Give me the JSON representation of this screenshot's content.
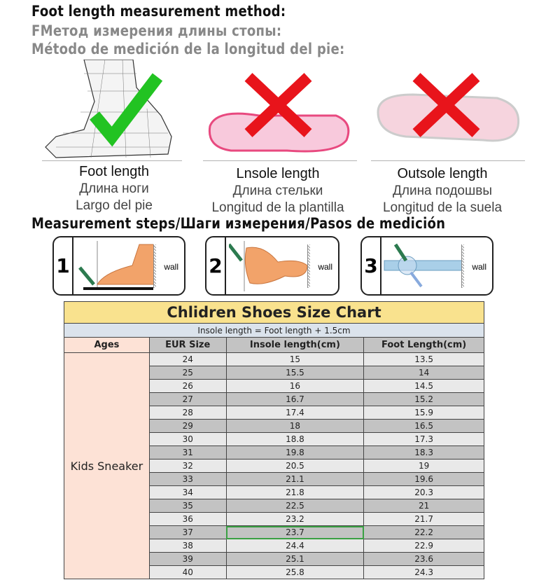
{
  "headings": {
    "en": "Foot length measurement method:",
    "ru": "FМетод измерения длины стопы:",
    "es": "Método de medición de la longitud del pie:",
    "steps": "Measurement steps/Шаги измерения/Pasos de medición"
  },
  "methods": [
    {
      "en": "Foot length",
      "ru": "Длина ноги",
      "es": "Largo del pie",
      "mark": "check-icon"
    },
    {
      "en": "Lnsole length",
      "ru": "Длина стельки",
      "es": "Longitud de la plantilla",
      "mark": "cross-icon"
    },
    {
      "en": "Outsole length",
      "ru": "Длина подошвы",
      "es": "Longitud de la suela",
      "mark": "cross-icon"
    }
  ],
  "steps": [
    {
      "num": "1",
      "wall": "wall"
    },
    {
      "num": "2",
      "wall": "wall"
    },
    {
      "num": "3",
      "wall": "wall"
    }
  ],
  "colors": {
    "check": "#22c322",
    "cross": "#e8141b",
    "title_bg": "#f9e28e",
    "ages_bg": "#fde2d6",
    "selected_border": "#3aa043"
  },
  "chart": {
    "title": "Chlidren Shoes Size Chart",
    "subtitle": "Insole length = Foot length + 1.5cm",
    "headers": [
      "Ages",
      "EUR Size",
      "Insole length(cm)",
      "Foot Length(cm)"
    ],
    "ages": "Kids Sneaker",
    "selected_row": 13,
    "rows": [
      [
        "24",
        "15",
        "13.5"
      ],
      [
        "25",
        "15.5",
        "14"
      ],
      [
        "26",
        "16",
        "14.5"
      ],
      [
        "27",
        "16.7",
        "15.2"
      ],
      [
        "28",
        "17.4",
        "15.9"
      ],
      [
        "29",
        "18",
        "16.5"
      ],
      [
        "30",
        "18.8",
        "17.3"
      ],
      [
        "31",
        "19.8",
        "18.3"
      ],
      [
        "32",
        "20.5",
        "19"
      ],
      [
        "33",
        "21.1",
        "19.6"
      ],
      [
        "34",
        "21.8",
        "20.3"
      ],
      [
        "35",
        "22.5",
        "21"
      ],
      [
        "36",
        "23.2",
        "21.7"
      ],
      [
        "37",
        "23.7",
        "22.2"
      ],
      [
        "38",
        "24.4",
        "22.9"
      ],
      [
        "39",
        "25.1",
        "23.6"
      ],
      [
        "40",
        "25.8",
        "24.3"
      ]
    ]
  }
}
